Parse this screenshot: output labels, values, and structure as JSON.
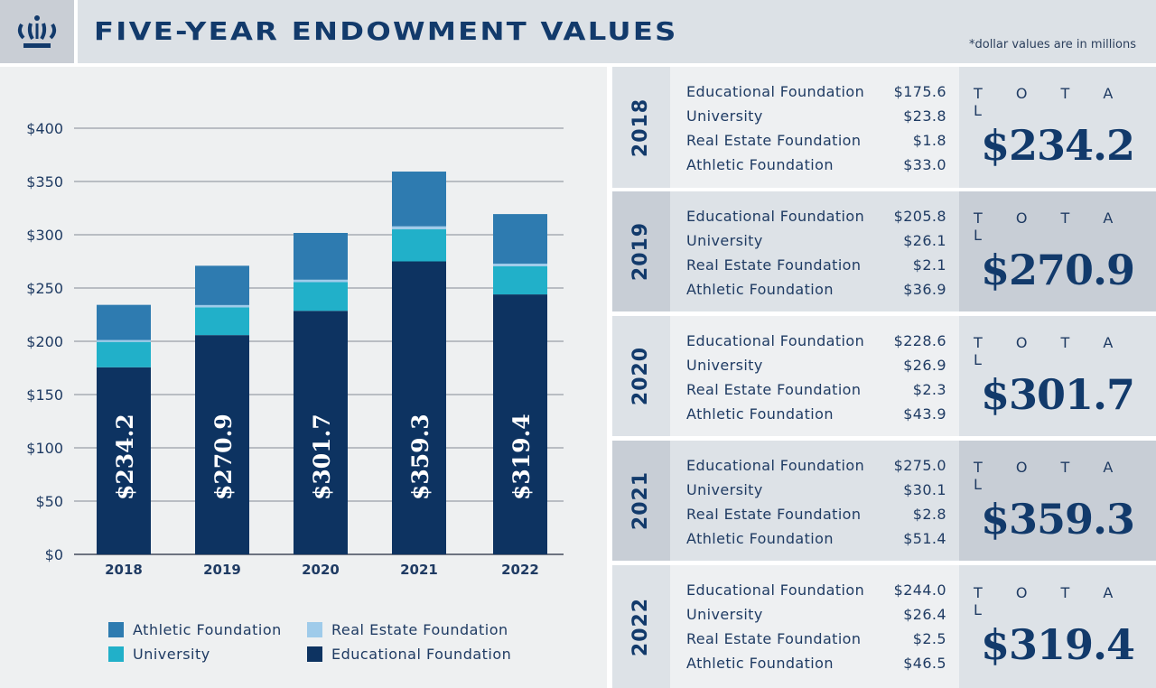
{
  "header": {
    "title": "FIVE-YEAR ENDOWMENT VALUES",
    "note": "*dollar values are in millions",
    "logo": "crown-icon"
  },
  "colors": {
    "Athletic Foundation": "#2e7bb0",
    "Real Estate Foundation": "#9fcbea",
    "University": "#21b0c9",
    "Educational Foundation": "#0d3361"
  },
  "total_label": "T O T A L",
  "rows": [
    {
      "year": "2018",
      "items": [
        {
          "label": "Educational Foundation",
          "value": "$175.6"
        },
        {
          "label": "University",
          "value": "$23.8"
        },
        {
          "label": "Real Estate Foundation",
          "value": "$1.8"
        },
        {
          "label": "Athletic Foundation",
          "value": "$33.0"
        }
      ],
      "total": "$234.2"
    },
    {
      "year": "2019",
      "items": [
        {
          "label": "Educational Foundation",
          "value": "$205.8"
        },
        {
          "label": "University",
          "value": "$26.1"
        },
        {
          "label": "Real Estate Foundation",
          "value": "$2.1"
        },
        {
          "label": "Athletic Foundation",
          "value": "$36.9"
        }
      ],
      "total": "$270.9"
    },
    {
      "year": "2020",
      "items": [
        {
          "label": "Educational Foundation",
          "value": "$228.6"
        },
        {
          "label": "University",
          "value": "$26.9"
        },
        {
          "label": "Real Estate Foundation",
          "value": "$2.3"
        },
        {
          "label": "Athletic Foundation",
          "value": "$43.9"
        }
      ],
      "total": "$301.7"
    },
    {
      "year": "2021",
      "items": [
        {
          "label": "Educational Foundation",
          "value": "$275.0"
        },
        {
          "label": "University",
          "value": "$30.1"
        },
        {
          "label": "Real Estate Foundation",
          "value": "$2.8"
        },
        {
          "label": "Athletic Foundation",
          "value": "$51.4"
        }
      ],
      "total": "$359.3"
    },
    {
      "year": "2022",
      "items": [
        {
          "label": "Educational Foundation",
          "value": "$244.0"
        },
        {
          "label": "University",
          "value": "$26.4"
        },
        {
          "label": "Real Estate Foundation",
          "value": "$2.5"
        },
        {
          "label": "Athletic Foundation",
          "value": "$46.5"
        }
      ],
      "total": "$319.4"
    }
  ],
  "chart_data": {
    "type": "bar",
    "stacked": true,
    "grid": true,
    "legend_placement": "bottom",
    "categories": [
      "2018",
      "2019",
      "2020",
      "2021",
      "2022"
    ],
    "ylim": [
      0,
      400
    ],
    "yticks": [
      "$0",
      "$50",
      "$100",
      "$150",
      "$200",
      "$250",
      "$300",
      "$350",
      "$400"
    ],
    "series": [
      {
        "name": "Educational Foundation",
        "values": [
          175.6,
          205.8,
          228.6,
          275.0,
          244.0
        ]
      },
      {
        "name": "University",
        "values": [
          23.8,
          26.1,
          26.9,
          30.1,
          26.4
        ]
      },
      {
        "name": "Real Estate Foundation",
        "values": [
          1.8,
          2.1,
          2.3,
          2.8,
          2.5
        ]
      },
      {
        "name": "Athletic Foundation",
        "values": [
          33.0,
          36.9,
          43.9,
          51.4,
          46.5
        ]
      }
    ],
    "bar_labels": [
      "$234.2",
      "$270.9",
      "$301.7",
      "$359.3",
      "$319.4"
    ],
    "legend": [
      "Athletic Foundation",
      "Real Estate Foundation",
      "University",
      "Educational Foundation"
    ]
  }
}
